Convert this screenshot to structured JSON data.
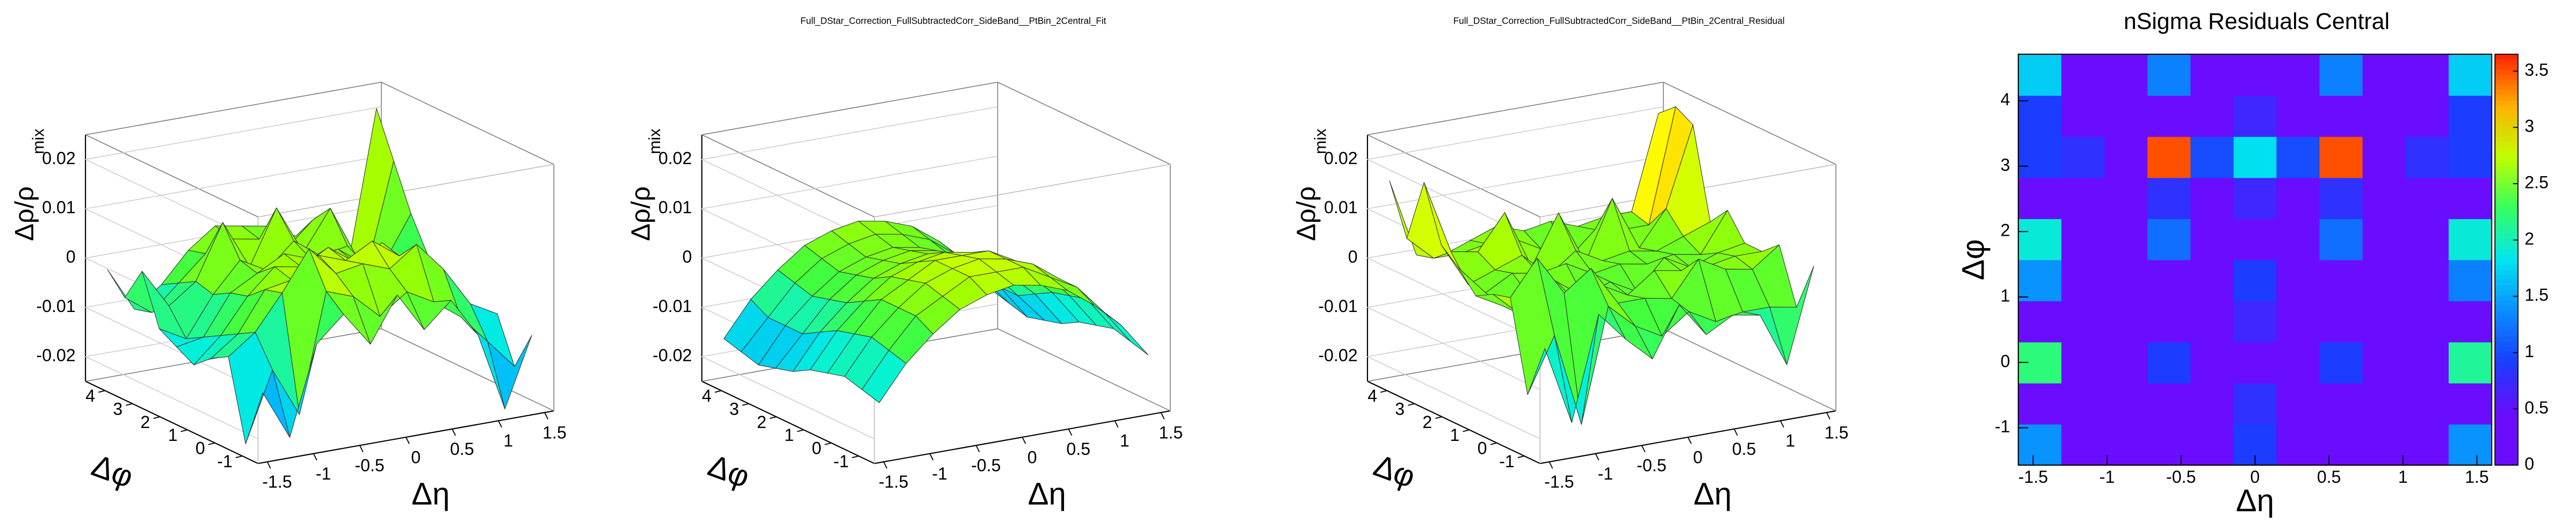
{
  "chart_data": [
    {
      "type": "surface",
      "xlabel": "Δη",
      "ylabel": "Δφ",
      "zlabel": "Δρ/ρ",
      "zlabel_subscript": "mix",
      "xbins": [
        -1.6,
        -1.309,
        -1.018,
        -0.727,
        -0.436,
        -0.145,
        0.145,
        0.436,
        0.727,
        1.018,
        1.309,
        1.6
      ],
      "ybins": [
        -1.571,
        -0.942,
        -0.314,
        0.314,
        0.942,
        1.571,
        2.199,
        2.827,
        3.456,
        4.084,
        4.712
      ],
      "xlim": [
        -1.6,
        1.6
      ],
      "ylim": [
        -1.571,
        4.712
      ],
      "zlim": [
        -0.025,
        0.025
      ],
      "xticks": [
        -1.5,
        -1,
        -0.5,
        0,
        0.5,
        1,
        1.5
      ],
      "yticks": [
        -1,
        0,
        1,
        2,
        3,
        4
      ],
      "zticks": [
        -0.02,
        -0.01,
        0,
        0.01,
        0.02
      ],
      "colorscale": [
        "#2020ff",
        "#00b0ff",
        "#00f0e0",
        "#40ff40",
        "#a0ff00",
        "#ffff00",
        "#ff8000",
        "#ff0000"
      ],
      "values": [
        [
          -0.012,
          -0.022,
          -0.004,
          0.001,
          -0.006,
          0.003,
          -0.005,
          0.0,
          -0.008,
          -0.024,
          -0.01
        ],
        [
          -0.024,
          -0.01,
          -0.02,
          0.004,
          0.002,
          -0.003,
          0.001,
          -0.002,
          -0.006,
          -0.012,
          -0.018
        ],
        [
          -0.008,
          -0.004,
          0.003,
          0.011,
          0.005,
          0.006,
          0.004,
          0.008,
          0.002,
          -0.006,
          -0.009
        ],
        [
          -0.01,
          -0.006,
          0.002,
          0.003,
          0.007,
          0.005,
          0.008,
          0.004,
          0.001,
          -0.004,
          -0.011
        ],
        [
          -0.013,
          -0.008,
          -0.001,
          0.004,
          0.003,
          0.006,
          0.002,
          0.005,
          -0.003,
          -0.006,
          -0.012
        ],
        [
          -0.011,
          -0.01,
          -0.002,
          0.001,
          0.004,
          0.002,
          0.003,
          -0.001,
          -0.003,
          -0.008,
          -0.009
        ],
        [
          -0.009,
          -0.012,
          -0.004,
          0.002,
          -0.001,
          0.004,
          0.0,
          0.001,
          -0.006,
          -0.01,
          -0.004
        ],
        [
          0.001,
          -0.007,
          -0.003,
          0.008,
          -0.002,
          0.009,
          -0.001,
          0.007,
          -0.004,
          -0.006,
          0.003
        ],
        [
          -0.006,
          -0.01,
          -0.005,
          0.0,
          0.002,
          0.001,
          -0.002,
          0.003,
          -0.006,
          -0.009,
          0.012
        ],
        [
          -0.002,
          -0.011,
          -0.007,
          -0.001,
          0.003,
          0.002,
          0.001,
          -0.002,
          -0.005,
          -0.008,
          0.021
        ]
      ]
    },
    {
      "type": "surface",
      "title": "Full_DStar_Correction_FullSubtractedCorr_SideBand__PtBin_2Central_Fit",
      "xlabel": "Δη",
      "ylabel": "Δφ",
      "zlabel": "Δρ/ρ",
      "zlabel_subscript": "mix",
      "xbins": [
        -1.6,
        -1.309,
        -1.018,
        -0.727,
        -0.436,
        -0.145,
        0.145,
        0.436,
        0.727,
        1.018,
        1.309,
        1.6
      ],
      "ybins": [
        -1.571,
        -0.942,
        -0.314,
        0.314,
        0.942,
        1.571,
        2.199,
        2.827,
        3.456,
        4.084,
        4.712
      ],
      "xlim": [
        -1.6,
        1.6
      ],
      "ylim": [
        -1.571,
        4.712
      ],
      "zlim": [
        -0.025,
        0.025
      ],
      "xticks": [
        -1.5,
        -1,
        -0.5,
        0,
        0.5,
        1,
        1.5
      ],
      "yticks": [
        -1,
        0,
        1,
        2,
        3,
        4
      ],
      "zticks": [
        -0.02,
        -0.01,
        0,
        0.01,
        0.02
      ],
      "colorscale": [
        "#2020ff",
        "#00b0ff",
        "#00f0e0",
        "#40ff40",
        "#a0ff00",
        "#ffff00",
        "#ff8000",
        "#ff0000"
      ],
      "values": [
        [
          -0.014,
          -0.007,
          -0.002,
          0.002,
          0.004,
          0.005,
          0.004,
          0.002,
          -0.002,
          -0.007,
          -0.014
        ],
        [
          -0.013,
          -0.006,
          0,
          0.003,
          0.006,
          0.006,
          0.006,
          0.003,
          0,
          -0.006,
          -0.013
        ],
        [
          -0.012,
          -0.005,
          0,
          0.004,
          0.006,
          0.007,
          0.006,
          0.004,
          0,
          -0.005,
          -0.012
        ],
        [
          -0.013,
          -0.006,
          0,
          0.003,
          0.006,
          0.006,
          0.006,
          0.003,
          0,
          -0.006,
          -0.013
        ],
        [
          -0.014,
          -0.007,
          -0.002,
          0.002,
          0.004,
          0.005,
          0.004,
          0.002,
          -0.002,
          -0.007,
          -0.014
        ],
        [
          -0.016,
          -0.009,
          -0.004,
          0,
          0.002,
          0.003,
          0.002,
          0,
          -0.004,
          -0.009,
          -0.016
        ],
        [
          -0.017,
          -0.011,
          -0.005,
          -0.001,
          0.001,
          0.002,
          0.001,
          -0.001,
          -0.005,
          -0.011,
          -0.017
        ],
        [
          -0.018,
          -0.011,
          -0.006,
          -0.002,
          0,
          0.001,
          0,
          -0.002,
          -0.006,
          -0.011,
          -0.018
        ],
        [
          -0.017,
          -0.011,
          -0.005,
          -0.001,
          0.001,
          0.002,
          0.001,
          -0.001,
          -0.005,
          -0.011,
          -0.017
        ],
        [
          -0.016,
          -0.009,
          -0.004,
          0,
          0.002,
          0.003,
          0.002,
          0,
          -0.004,
          -0.009,
          -0.016
        ]
      ]
    },
    {
      "type": "surface",
      "title": "Full_DStar_Correction_FullSubtractedCorr_SideBand__PtBin_2Central_Residual",
      "xlabel": "Δη",
      "ylabel": "Δφ",
      "zlabel": "Δρ/ρ",
      "zlabel_subscript": "mix",
      "xbins": [
        -1.6,
        -1.309,
        -1.018,
        -0.727,
        -0.436,
        -0.145,
        0.145,
        0.436,
        0.727,
        1.018,
        1.309,
        1.6
      ],
      "ybins": [
        -1.571,
        -0.942,
        -0.314,
        0.314,
        0.942,
        1.571,
        2.199,
        2.827,
        3.456,
        4.084,
        4.712
      ],
      "xlim": [
        -1.6,
        1.6
      ],
      "ylim": [
        -1.571,
        4.712
      ],
      "zlim": [
        -0.025,
        0.025
      ],
      "xticks": [
        -1.5,
        -1,
        -0.5,
        0,
        0.5,
        1,
        1.5
      ],
      "yticks": [
        -1,
        0,
        1,
        2,
        3,
        4
      ],
      "zticks": [
        -0.02,
        -0.01,
        0,
        0.01,
        0.02
      ],
      "colorscale": [
        "#2020ff",
        "#00b0ff",
        "#00f0e0",
        "#40ff40",
        "#a0ff00",
        "#ffff00",
        "#ff8000",
        "#ff0000"
      ],
      "values": [
        [
          -0.003,
          -0.019,
          0.002,
          -0.004,
          -0.009,
          0.001,
          -0.006,
          -0.003,
          -0.004,
          -0.015,
          0.004
        ],
        [
          -0.014,
          -0.003,
          -0.022,
          0.001,
          -0.004,
          -0.007,
          -0.003,
          -0.006,
          -0.005,
          -0.005,
          -0.006
        ],
        [
          0.004,
          0.011,
          0.003,
          0.007,
          -0.001,
          -0.001,
          -0.002,
          0.005,
          0.002,
          0.001,
          0.005
        ],
        [
          0.003,
          -0.002,
          0.002,
          -0.001,
          0.001,
          -0.002,
          0.002,
          0.001,
          0.001,
          0.002,
          0.002
        ],
        [
          0.001,
          -0.002,
          -0.001,
          0.001,
          -0.003,
          -0.001,
          -0.004,
          0.002,
          -0.001,
          0.001,
          0.002
        ],
        [
          0.005,
          -0.001,
          0.002,
          0.001,
          0.002,
          -0.001,
          0.0,
          -0.001,
          0.0,
          -0.001,
          0.007
        ],
        [
          0.008,
          -0.001,
          0.001,
          0.003,
          -0.002,
          0.002,
          -0.001,
          0.0,
          -0.001,
          0.001,
          0.003
        ],
        [
          0.019,
          0.004,
          0.003,
          0.01,
          -0.002,
          0.008,
          -0.003,
          0.009,
          -0.002,
          0.005,
          0.021
        ],
        [
          0.006,
          0.001,
          0.001,
          0.002,
          0.002,
          -0.001,
          -0.004,
          0.001,
          0.0,
          0.0,
          0.023
        ],
        [
          0.016,
          0.0,
          -0.001,
          0.001,
          0.003,
          0.001,
          0.002,
          0.0,
          0.001,
          0.001,
          0.02
        ]
      ]
    },
    {
      "type": "heatmap",
      "title": "nSigma Residuals Central",
      "xlabel": "Δη",
      "ylabel": "Δφ",
      "xbins": [
        -1.6,
        -1.309,
        -1.018,
        -0.727,
        -0.436,
        -0.145,
        0.145,
        0.436,
        0.727,
        1.018,
        1.309,
        1.6
      ],
      "ybins": [
        -1.571,
        -0.942,
        -0.314,
        0.314,
        0.942,
        1.571,
        2.199,
        2.827,
        3.456,
        4.084,
        4.712
      ],
      "xlim": [
        -1.6,
        1.6
      ],
      "ylim": [
        -1.571,
        4.712
      ],
      "zlim": [
        0,
        3.65
      ],
      "xticks": [
        -1.5,
        -1,
        -0.5,
        0,
        0.5,
        1,
        1.5
      ],
      "yticks": [
        -1,
        0,
        1,
        2,
        3,
        4
      ],
      "zticks": [
        0,
        0.5,
        1,
        1.5,
        2,
        2.5,
        3,
        3.5
      ],
      "colorscale": [
        "#6a0dff",
        "#6a0dff",
        "#1a3dff",
        "#0a8dff",
        "#00e5f0",
        "#35ff60",
        "#c0ff00",
        "#ffb000",
        "#ff2000"
      ],
      "values": [
        [
          1.4,
          0.3,
          0.3,
          0.3,
          0.3,
          0.9,
          0.3,
          0.3,
          0.3,
          0.3,
          1.4
        ],
        [
          0.3,
          0.3,
          0.3,
          0.3,
          0.3,
          0.8,
          0.3,
          0.3,
          0.3,
          0.3,
          0.3
        ],
        [
          2.2,
          0.3,
          0.3,
          0.9,
          0.3,
          0.3,
          0.3,
          0.9,
          0.3,
          0.3,
          2.1
        ],
        [
          0.3,
          0.3,
          0.3,
          0.3,
          0.3,
          0.7,
          0.3,
          0.3,
          0.3,
          0.3,
          0.3
        ],
        [
          1.4,
          0.3,
          0.3,
          0.3,
          0.3,
          0.9,
          0.3,
          0.3,
          0.3,
          0.3,
          1.3
        ],
        [
          1.9,
          0.3,
          0.3,
          1.2,
          0.3,
          0.3,
          0.3,
          1.2,
          0.3,
          0.3,
          1.9
        ],
        [
          0.3,
          0.3,
          0.3,
          0.8,
          0.3,
          0.7,
          0.3,
          0.8,
          0.3,
          0.3,
          0.3
        ],
        [
          0.9,
          0.8,
          0.3,
          3.5,
          1.0,
          1.8,
          1.0,
          3.5,
          0.3,
          0.8,
          0.9
        ],
        [
          0.9,
          0.3,
          0.3,
          0.3,
          0.3,
          0.7,
          0.3,
          0.3,
          0.3,
          0.3,
          0.9
        ],
        [
          1.7,
          0.3,
          0.3,
          1.3,
          0.3,
          0.3,
          0.3,
          1.3,
          0.3,
          0.3,
          1.7
        ]
      ]
    }
  ]
}
